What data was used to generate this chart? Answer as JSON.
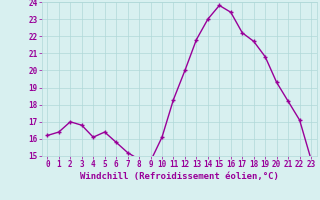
{
  "x": [
    0,
    1,
    2,
    3,
    4,
    5,
    6,
    7,
    8,
    9,
    10,
    11,
    12,
    13,
    14,
    15,
    16,
    17,
    18,
    19,
    20,
    21,
    22,
    23
  ],
  "y": [
    16.2,
    16.4,
    17.0,
    16.8,
    16.1,
    16.4,
    15.8,
    15.2,
    14.8,
    14.7,
    16.1,
    18.3,
    20.0,
    21.8,
    23.0,
    23.8,
    23.4,
    22.2,
    21.7,
    20.8,
    19.3,
    18.2,
    17.1,
    14.8
  ],
  "line_color": "#990099",
  "marker": "+",
  "marker_size": 3,
  "bg_color": "#d8f0f0",
  "grid_color": "#b0d8d8",
  "xlabel": "Windchill (Refroidissement éolien,°C)",
  "ylim": [
    15,
    24
  ],
  "xlim": [
    -0.5,
    23.5
  ],
  "yticks": [
    15,
    16,
    17,
    18,
    19,
    20,
    21,
    22,
    23,
    24
  ],
  "xticks": [
    0,
    1,
    2,
    3,
    4,
    5,
    6,
    7,
    8,
    9,
    10,
    11,
    12,
    13,
    14,
    15,
    16,
    17,
    18,
    19,
    20,
    21,
    22,
    23
  ],
  "tick_label_size": 5.5,
  "xlabel_size": 6.5,
  "line_width": 1.0,
  "marker_edge_width": 1.0
}
